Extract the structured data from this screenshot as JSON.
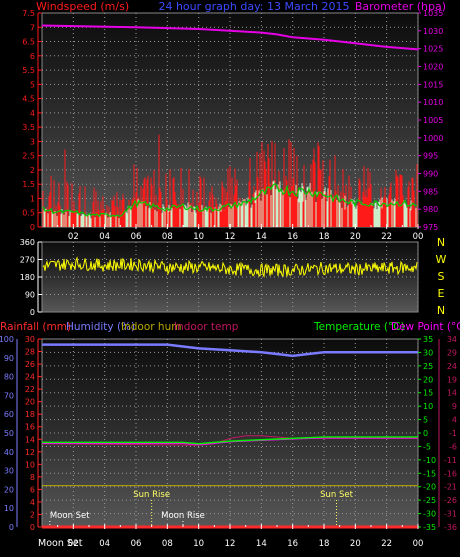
{
  "colors": {
    "wind": "#ff1a1a",
    "wind_avg": "#00cc00",
    "wind_fill": "#d8ffd8",
    "barometer": "#e600e6",
    "title": "#3b4bff",
    "direction": "#ffff00",
    "rain": "#ff2a2a",
    "humidity": "#7b7bff",
    "indoor_hum": "#b8a800",
    "indoor_temp": "#c01860",
    "temperature": "#00ee00",
    "dewpoint": "#ff00ff",
    "axis_text": "#ffffff",
    "grid": "#9a9a9a"
  },
  "top_header": {
    "left": "Windspeed (m/s)",
    "center": "24 hour graph day: 13 March 2015",
    "right": "Barometer (hpa)"
  },
  "compass": [
    "N",
    "W",
    "S",
    "E",
    "N"
  ],
  "bottom_header": {
    "rain": "Rainfall (mm)",
    "humidity": "Humidity (%)",
    "indoor_hum": "Indoor hum",
    "indoor_temp": "Indoor temp",
    "temperature": "Temperature (°C)",
    "dewpoint": "Dew Point (°C)"
  },
  "events": {
    "moon_set": "Moon Set",
    "sun_rise": "Sun Rise",
    "moon_rise": "Moon Rise",
    "sun_set": "Sun Set"
  },
  "x_axis_label": "Moon Set",
  "chart_data": [
    {
      "type": "line",
      "name": "wind-barometer",
      "x_ticks": [
        "02",
        "04",
        "06",
        "08",
        "10",
        "12",
        "14",
        "16",
        "18",
        "20",
        "22",
        "00"
      ],
      "y_left": {
        "label": "Windspeed (m/s)",
        "range": [
          0,
          7.5
        ],
        "ticks": [
          0,
          0.5,
          1,
          1.5,
          2,
          2.5,
          3,
          3.5,
          4,
          4.5,
          5,
          5.5,
          6,
          6.5,
          7,
          7.5
        ]
      },
      "y_right": {
        "label": "Barometer (hpa)",
        "range": [
          975,
          1035
        ],
        "ticks": [
          975,
          980,
          985,
          990,
          995,
          1000,
          1005,
          1010,
          1015,
          1020,
          1025,
          1030,
          1035
        ]
      },
      "wind_hourly": [
        {
          "hour": 0,
          "gust": 1.4,
          "avg": 0.6
        },
        {
          "hour": 1,
          "gust": 1.3,
          "avg": 0.5
        },
        {
          "hour": 2,
          "gust": 1.3,
          "avg": 0.5
        },
        {
          "hour": 3,
          "gust": 1.0,
          "avg": 0.4
        },
        {
          "hour": 4,
          "gust": 1.0,
          "avg": 0.4
        },
        {
          "hour": 5,
          "gust": 1.0,
          "avg": 0.4
        },
        {
          "hour": 6,
          "gust": 1.8,
          "avg": 0.8
        },
        {
          "hour": 7,
          "gust": 1.5,
          "avg": 0.7
        },
        {
          "hour": 8,
          "gust": 1.5,
          "avg": 0.6
        },
        {
          "hour": 9,
          "gust": 1.6,
          "avg": 0.7
        },
        {
          "hour": 10,
          "gust": 1.4,
          "avg": 0.6
        },
        {
          "hour": 11,
          "gust": 1.3,
          "avg": 0.6
        },
        {
          "hour": 12,
          "gust": 1.6,
          "avg": 0.7
        },
        {
          "hour": 13,
          "gust": 1.7,
          "avg": 0.8
        },
        {
          "hour": 14,
          "gust": 2.4,
          "avg": 1.1
        },
        {
          "hour": 15,
          "gust": 2.7,
          "avg": 1.3
        },
        {
          "hour": 16,
          "gust": 2.5,
          "avg": 1.2
        },
        {
          "hour": 17,
          "gust": 2.4,
          "avg": 1.2
        },
        {
          "hour": 18,
          "gust": 2.3,
          "avg": 1.1
        },
        {
          "hour": 19,
          "gust": 1.8,
          "avg": 0.9
        },
        {
          "hour": 20,
          "gust": 1.6,
          "avg": 0.8
        },
        {
          "hour": 21,
          "gust": 1.7,
          "avg": 0.8
        },
        {
          "hour": 22,
          "gust": 1.7,
          "avg": 0.8
        },
        {
          "hour": 23,
          "gust": 1.6,
          "avg": 0.8
        },
        {
          "hour": 24,
          "gust": 1.5,
          "avg": 0.7
        }
      ],
      "barometer": [
        [
          0,
          1031.5
        ],
        [
          6,
          1031.0
        ],
        [
          10,
          1030.5
        ],
        [
          12,
          1030.0
        ],
        [
          14,
          1029.5
        ],
        [
          15,
          1029.0
        ],
        [
          16,
          1028.2
        ],
        [
          18,
          1027.5
        ],
        [
          20,
          1026.5
        ],
        [
          22,
          1025.5
        ],
        [
          24,
          1024.8
        ]
      ]
    },
    {
      "type": "line",
      "name": "wind-direction",
      "y_left": {
        "range": [
          0,
          360
        ],
        "ticks": [
          0,
          90,
          180,
          270,
          360
        ]
      },
      "direction": [
        [
          0,
          235
        ],
        [
          2,
          250
        ],
        [
          4,
          240
        ],
        [
          6,
          245
        ],
        [
          8,
          230
        ],
        [
          10,
          230
        ],
        [
          12,
          220
        ],
        [
          14,
          215
        ],
        [
          16,
          215
        ],
        [
          18,
          225
        ],
        [
          20,
          220
        ],
        [
          22,
          225
        ],
        [
          24,
          230
        ]
      ]
    },
    {
      "type": "line",
      "name": "rain-humidity-temperature",
      "y_humidity": {
        "label": "Humidity (%)",
        "range": [
          0,
          100
        ],
        "ticks": [
          0,
          10,
          20,
          30,
          40,
          50,
          60,
          70,
          80,
          90,
          100
        ]
      },
      "y_rain": {
        "label": "Rainfall (mm)",
        "range": [
          0,
          30
        ],
        "ticks": [
          0,
          2,
          4,
          6,
          8,
          10,
          12,
          14,
          16,
          18,
          20,
          22,
          24,
          26,
          28,
          30
        ]
      },
      "y_temperature": {
        "label": "Temperature (°C)",
        "range": [
          -35,
          35
        ],
        "ticks": [
          -35,
          -30,
          -25,
          -20,
          -15,
          -10,
          -5,
          0,
          5,
          10,
          15,
          20,
          25,
          30,
          35
        ]
      },
      "y_dewpoint": {
        "label": "Dew Point (°C)",
        "range": [
          -36,
          34
        ],
        "ticks": [
          -36,
          -31,
          -26,
          -21,
          -16,
          -11,
          -6,
          -1,
          4,
          9,
          14,
          19,
          24,
          29,
          34
        ]
      },
      "humidity": [
        [
          0,
          97
        ],
        [
          8,
          97
        ],
        [
          9,
          96
        ],
        [
          10,
          95
        ],
        [
          12,
          94
        ],
        [
          14,
          93
        ],
        [
          15,
          92
        ],
        [
          16,
          91
        ],
        [
          17,
          92
        ],
        [
          18,
          93
        ],
        [
          20,
          93
        ],
        [
          22,
          93
        ],
        [
          24,
          93
        ]
      ],
      "rainfall": [
        [
          0,
          0
        ],
        [
          24,
          0
        ]
      ],
      "indoor_humidity": [
        [
          0,
          22
        ],
        [
          24,
          22
        ]
      ],
      "indoor_temp": [
        [
          0,
          -4
        ],
        [
          10,
          -4.5
        ],
        [
          11,
          -4
        ],
        [
          12,
          -2
        ],
        [
          13,
          -1
        ],
        [
          14,
          -1
        ],
        [
          15,
          -1.5
        ],
        [
          16,
          -2
        ],
        [
          18,
          -2
        ],
        [
          24,
          -2
        ]
      ],
      "temperature": [
        [
          0,
          -3.5
        ],
        [
          9,
          -3.5
        ],
        [
          10,
          -4
        ],
        [
          11,
          -3.5
        ],
        [
          12,
          -3
        ],
        [
          14,
          -2.5
        ],
        [
          16,
          -2
        ],
        [
          18,
          -1.5
        ],
        [
          20,
          -1.5
        ],
        [
          24,
          -1.5
        ]
      ],
      "dewpoint": [
        [
          0,
          -3.8
        ],
        [
          9,
          -3.8
        ],
        [
          10,
          -4.3
        ],
        [
          11,
          -3.8
        ],
        [
          12,
          -3.2
        ],
        [
          14,
          -2.7
        ],
        [
          16,
          -2.2
        ],
        [
          18,
          -1.8
        ],
        [
          20,
          -1.8
        ],
        [
          24,
          -1.8
        ]
      ],
      "events": [
        {
          "label": "Moon Set",
          "hour": 0.5
        },
        {
          "label": "Sun Rise",
          "hour": 7
        },
        {
          "label": "Moon Rise",
          "hour": 9
        },
        {
          "label": "Sun Set",
          "hour": 18.8
        }
      ]
    }
  ]
}
